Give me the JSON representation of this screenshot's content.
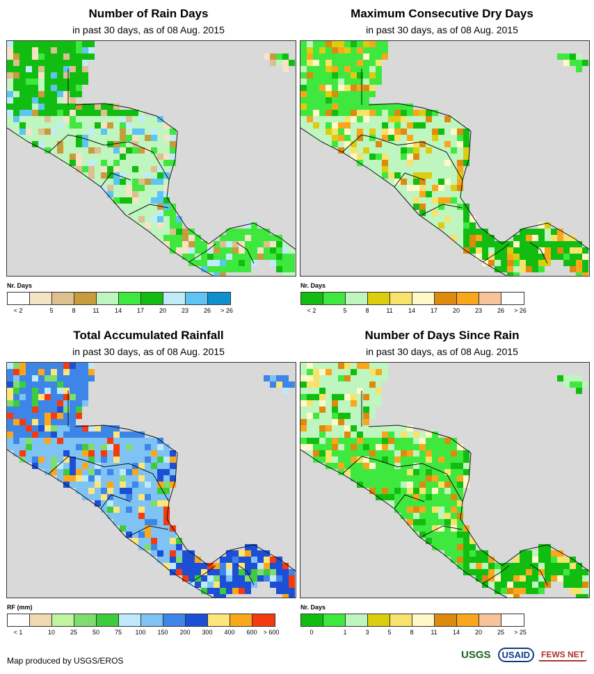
{
  "colors": {
    "water": "#d9d9d9",
    "border": "#333333"
  },
  "panels": [
    {
      "id": "rain-days",
      "title": "Number of Rain Days",
      "subtitle": "in past 30 days, as of 08 Aug. 2015",
      "legend_title": "Nr. Days",
      "legend_colors": [
        "#ffffff",
        "#f5e3c5",
        "#dcc08e",
        "#c89b3c",
        "#bff5bf",
        "#3fe83f",
        "#11bd11",
        "#c0ecfa",
        "#5ec4f4",
        "#0e8fce"
      ],
      "legend_labels": [
        "< 2",
        "5",
        "8",
        "11",
        "14",
        "17",
        "20",
        "23",
        "26",
        "> 26"
      ],
      "palette": [
        "#11bd11",
        "#3fe83f",
        "#bff5bf",
        "#dcc08e",
        "#c89b3c",
        "#f5e3c5",
        "#5ec4f4",
        "#c0ecfa"
      ]
    },
    {
      "id": "max-dry-days",
      "title": "Maximum Consecutive Dry Days",
      "subtitle": "in past 30 days, as of 08 Aug. 2015",
      "legend_title": "Nr. Days",
      "legend_colors": [
        "#11bd11",
        "#3fe83f",
        "#bff5bf",
        "#dccd0f",
        "#f7e36b",
        "#fff8c8",
        "#dd8a0d",
        "#f8a71d",
        "#f9c39a",
        "#ffffff"
      ],
      "legend_labels": [
        "< 2",
        "5",
        "8",
        "11",
        "14",
        "17",
        "20",
        "23",
        "26",
        "> 26"
      ],
      "palette": [
        "#3fe83f",
        "#11bd11",
        "#bff5bf",
        "#f7e36b",
        "#dccd0f",
        "#fff8c8",
        "#dd8a0d",
        "#f8a71d"
      ]
    },
    {
      "id": "total-rainfall",
      "title": "Total Accumulated Rainfall",
      "subtitle": "in past 30 days, as of 08 Aug. 2015",
      "legend_title": "RF (mm)",
      "legend_colors": [
        "#ffffff",
        "#f0d9b0",
        "#bff5a0",
        "#7edd6e",
        "#3ccc3c",
        "#bfe9fb",
        "#7ec3f3",
        "#3d86e8",
        "#1c4fd6",
        "#fde57a",
        "#fba818",
        "#f53a0f"
      ],
      "legend_labels": [
        "< 1",
        "10",
        "25",
        "50",
        "75",
        "100",
        "150",
        "200",
        "300",
        "400",
        "600",
        "> 600"
      ],
      "palette": [
        "#3d86e8",
        "#1c4fd6",
        "#7ec3f3",
        "#bfe9fb",
        "#7edd6e",
        "#3ccc3c",
        "#fde57a",
        "#fba818",
        "#f53a0f"
      ]
    },
    {
      "id": "days-since-rain",
      "title": "Number of Days Since Rain",
      "subtitle": "in past 30 days, as of 08 Aug. 2015",
      "legend_title": "Nr. Days",
      "legend_colors": [
        "#11bd11",
        "#3fe83f",
        "#bff5bf",
        "#dccd0f",
        "#f7e36b",
        "#fff8c8",
        "#dd8a0d",
        "#f8a71d",
        "#f9c39a",
        "#ffffff"
      ],
      "legend_labels": [
        "0",
        "1",
        "3",
        "5",
        "8",
        "11",
        "14",
        "20",
        "25",
        "> 25"
      ],
      "palette": [
        "#bff5bf",
        "#11bd11",
        "#3fe83f",
        "#f7e36b",
        "#fff8c8",
        "#f8a71d",
        "#dd8a0d"
      ]
    }
  ],
  "footer": {
    "credit": "Map produced by USGS/EROS",
    "logos": [
      "USGS",
      "USAID",
      "FEWS NET"
    ]
  }
}
